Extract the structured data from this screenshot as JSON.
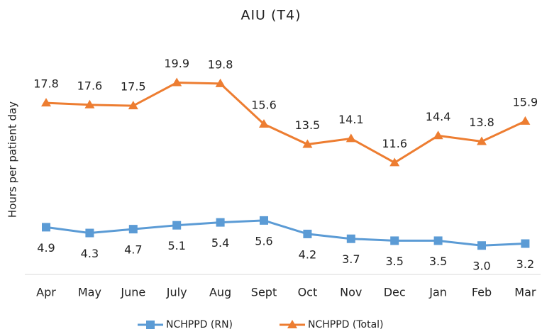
{
  "chart_data": {
    "type": "line",
    "title": "AIU (T4)",
    "y_label": "Hours per patient day",
    "categories": [
      "Apr",
      "May",
      "June",
      "July",
      "Aug",
      "Sept",
      "Oct",
      "Nov",
      "Dec",
      "Jan",
      "Feb",
      "Mar"
    ],
    "series": [
      {
        "name": "NCHPPD (RN)",
        "color": "#5b9bd5",
        "marker": "square",
        "values": [
          4.9,
          4.3,
          4.7,
          5.1,
          5.4,
          5.6,
          4.2,
          3.7,
          3.5,
          3.5,
          3.0,
          3.2
        ],
        "value_labels": [
          "4.9",
          "4.3",
          "4.7",
          "5.1",
          "5.4",
          "5.6",
          "4.2",
          "3.7",
          "3.5",
          "3.5",
          "3.0",
          "3.2"
        ]
      },
      {
        "name": "NCHPPD (Total)",
        "color": "#ed7d31",
        "marker": "triangle",
        "values": [
          17.8,
          17.6,
          17.5,
          19.9,
          19.8,
          15.6,
          13.5,
          14.1,
          11.6,
          14.4,
          13.8,
          15.9
        ],
        "value_labels": [
          "17.8",
          "17.6",
          "17.5",
          "19.9",
          "19.8",
          "15.6",
          "13.5",
          "14.1",
          "11.6",
          "14.4",
          "13.8",
          "15.9"
        ]
      }
    ],
    "ylim": [
      0,
      22
    ],
    "legend": "bottom"
  }
}
